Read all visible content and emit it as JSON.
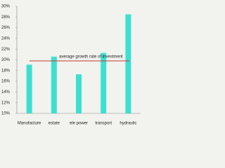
{
  "chart_data": {
    "type": "bar",
    "categories": [
      "Manufacture",
      "estate",
      "ele power",
      "transport",
      "hydraulic"
    ],
    "values": [
      19.1,
      20.6,
      17.3,
      21.3,
      28.5
    ],
    "color": "#3de0d0",
    "ylim": [
      10,
      30
    ],
    "yticks": [
      {
        "value": 10,
        "label": "10%"
      },
      {
        "value": 12,
        "label": "12%"
      },
      {
        "value": 14,
        "label": "14%"
      },
      {
        "value": 16,
        "label": "16%"
      },
      {
        "value": 18,
        "label": "18%"
      },
      {
        "value": 20,
        "label": "20%"
      },
      {
        "value": 22,
        "label": "22%"
      },
      {
        "value": 24,
        "label": "24%"
      },
      {
        "value": 26,
        "label": "26%"
      },
      {
        "value": 28,
        "label": "28%"
      },
      {
        "value": 30,
        "label": "30%"
      }
    ],
    "reference_line": {
      "value": 19.8,
      "label": "average growth rate of investment",
      "color": "#c0392b"
    }
  }
}
